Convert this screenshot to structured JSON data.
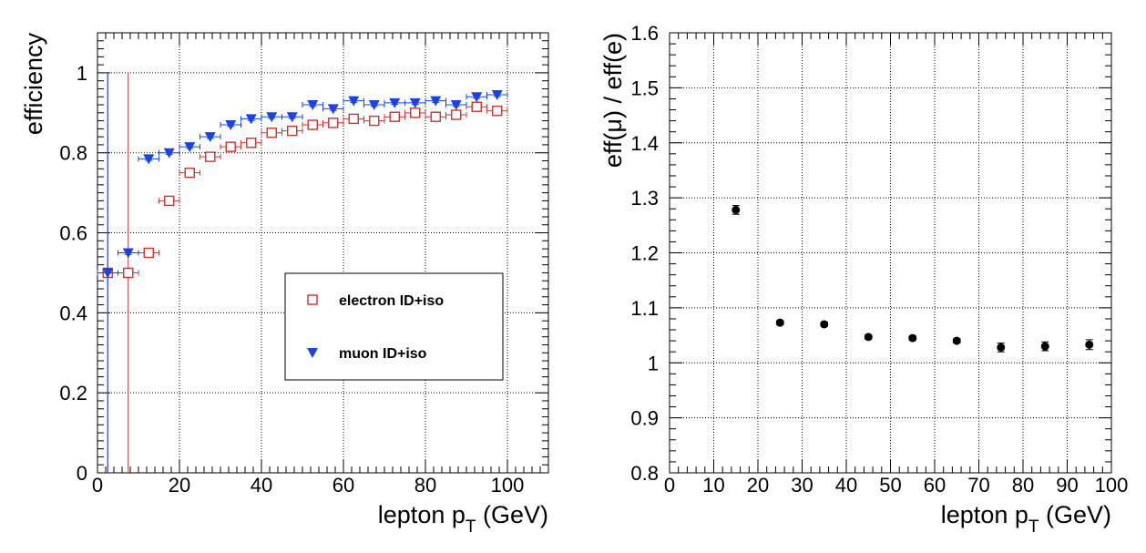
{
  "chart_data": [
    {
      "type": "scatter",
      "xlabel": "lepton p",
      "xlabel_sub": "T",
      "xlabel_unit": " (GeV)",
      "ylabel": "efficiency",
      "xlim": [
        0,
        110
      ],
      "ylim": [
        0,
        1.1
      ],
      "x_ticks": [
        0,
        20,
        40,
        60,
        80,
        100
      ],
      "y_ticks": [
        0,
        0.2,
        0.4,
        0.6,
        0.8,
        1
      ],
      "grid": true,
      "legend_position": "center-right",
      "series": [
        {
          "name": "electron ID+iso",
          "color": "#cc3333",
          "marker": "open-square",
          "bin_half_width": 2.5,
          "x": [
            2.5,
            7.5,
            12.5,
            17.5,
            22.5,
            27.5,
            32.5,
            37.5,
            42.5,
            47.5,
            52.5,
            57.5,
            62.5,
            67.5,
            72.5,
            77.5,
            82.5,
            87.5,
            92.5,
            97.5
          ],
          "y": [
            0.5,
            0.5,
            0.55,
            0.68,
            0.75,
            0.79,
            0.815,
            0.825,
            0.85,
            0.855,
            0.87,
            0.875,
            0.885,
            0.88,
            0.89,
            0.9,
            0.89,
            0.895,
            0.915,
            0.905
          ],
          "yerr": [
            0.5,
            0.5,
            0.004,
            0.004,
            0.004,
            0.004,
            0.004,
            0.004,
            0.004,
            0.004,
            0.004,
            0.004,
            0.004,
            0.004,
            0.004,
            0.004,
            0.004,
            0.004,
            0.004,
            0.004
          ]
        },
        {
          "name": "muon ID+iso",
          "color": "#1a44dd",
          "marker": "filled-down-triangle",
          "bin_half_width": 2.5,
          "x": [
            2.5,
            7.5,
            12.5,
            17.5,
            22.5,
            27.5,
            32.5,
            37.5,
            42.5,
            47.5,
            52.5,
            57.5,
            62.5,
            67.5,
            72.5,
            77.5,
            82.5,
            87.5,
            92.5,
            97.5
          ],
          "y": [
            0.5,
            0.55,
            0.785,
            0.8,
            0.815,
            0.84,
            0.87,
            0.885,
            0.89,
            0.89,
            0.92,
            0.91,
            0.93,
            0.92,
            0.925,
            0.925,
            0.93,
            0.92,
            0.94,
            0.945
          ],
          "yerr": [
            0.5,
            0.004,
            0.004,
            0.004,
            0.004,
            0.004,
            0.004,
            0.004,
            0.004,
            0.004,
            0.004,
            0.004,
            0.004,
            0.004,
            0.004,
            0.004,
            0.004,
            0.004,
            0.004,
            0.004
          ]
        }
      ]
    },
    {
      "type": "scatter",
      "xlabel": "lepton p",
      "xlabel_sub": "T",
      "xlabel_unit": " (GeV)",
      "ylabel": "eff(μ) / eff(e)",
      "xlim": [
        0,
        100
      ],
      "ylim": [
        0.8,
        1.6
      ],
      "x_ticks": [
        0,
        10,
        20,
        30,
        40,
        50,
        60,
        70,
        80,
        90,
        100
      ],
      "x_tick_labels": [
        "0",
        "10",
        "20",
        "30",
        "40",
        "50",
        "60",
        "70",
        "80",
        "90",
        "100"
      ],
      "y_ticks": [
        0.8,
        0.9,
        1.0,
        1.1,
        1.2,
        1.3,
        1.4,
        1.5,
        1.6
      ],
      "y_tick_labels": [
        "0.8",
        "0.9",
        "1",
        "1.1",
        "1.2",
        "1.3",
        "1.4",
        "1.5",
        "1.6"
      ],
      "grid": true,
      "series": [
        {
          "color": "#000000",
          "marker": "filled-circle",
          "x": [
            15,
            25,
            35,
            45,
            55,
            65,
            75,
            85,
            95
          ],
          "y": [
            1.278,
            1.073,
            1.07,
            1.047,
            1.045,
            1.04,
            1.028,
            1.03,
            1.033
          ],
          "yerr": [
            0.008,
            0.004,
            0.004,
            0.004,
            0.004,
            0.004,
            0.008,
            0.008,
            0.009
          ]
        }
      ]
    }
  ]
}
